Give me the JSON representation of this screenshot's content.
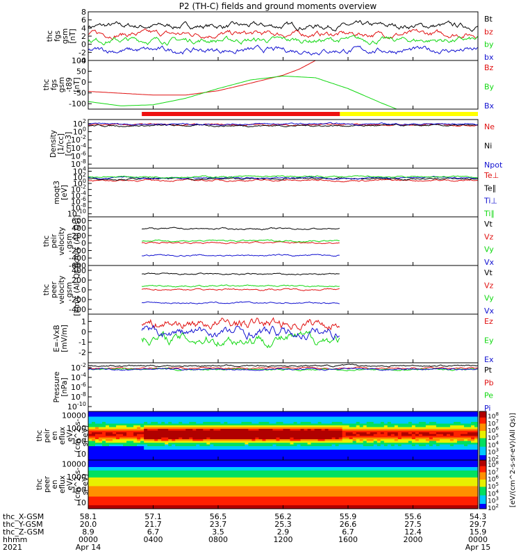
{
  "title": "P2 (TH-C) fields and ground moments overview",
  "colors": {
    "black": "#000000",
    "red": "#e01010",
    "green": "#10d810",
    "blue": "#1010d0",
    "bar_red": "#ee1111",
    "bar_yellow": "#ffff00"
  },
  "chart_data": [
    {
      "id": "fgs_gsm",
      "type": "line",
      "ylabel": [
        "thc",
        "fgs",
        "gsm",
        "[nT]"
      ],
      "yticks": [
        "8",
        "6",
        "4",
        "2",
        "0",
        "-2",
        "-4"
      ],
      "ylim": [
        -4,
        8
      ],
      "series": [
        {
          "name": "Bt",
          "color": "black"
        },
        {
          "name": "bz",
          "color": "red"
        },
        {
          "name": "by",
          "color": "green"
        },
        {
          "name": "bx",
          "color": "blue"
        }
      ],
      "approx_levels": {
        "Bt": 4.5,
        "bz": 2.5,
        "by": 1.0,
        "bx": -1.5
      }
    },
    {
      "id": "fgs_gsm_t89",
      "type": "line",
      "ylabel": [
        "thc",
        "fgs",
        "gsm",
        "-t89",
        "[nT]"
      ],
      "yticks": [
        "100",
        "50",
        "0",
        "-50",
        "-100"
      ],
      "ylim": [
        -125,
        100
      ],
      "series": [
        {
          "name": "Bz",
          "color": "red",
          "points": [
            [
              0,
              -43
            ],
            [
              4,
              -60
            ],
            [
              6,
              -60
            ],
            [
              8,
              -40
            ],
            [
              10,
              -5
            ],
            [
              12,
              32
            ],
            [
              13,
              60
            ],
            [
              14,
              100
            ]
          ]
        },
        {
          "name": "By",
          "color": "green",
          "points": [
            [
              0,
              -90
            ],
            [
              2,
              -110
            ],
            [
              4,
              -105
            ],
            [
              6,
              -75
            ],
            [
              8,
              -30
            ],
            [
              10,
              10
            ],
            [
              12,
              28
            ],
            [
              14,
              20
            ],
            [
              16,
              -30
            ],
            [
              18,
              -95
            ],
            [
              19,
              -125
            ]
          ]
        },
        {
          "name": "Bx",
          "color": "blue",
          "points": []
        }
      ]
    },
    {
      "id": "density",
      "type": "line",
      "ylabel": [
        "Density",
        "[1/cc]",
        "[cm-3]"
      ],
      "yticks": [
        "10^2",
        "10^0",
        "10^-2",
        "10^-4",
        "10^-6",
        "10^-8"
      ],
      "ylim_log10": [
        -9,
        3
      ],
      "series": [
        {
          "name": "Ne",
          "color": "red"
        },
        {
          "name": "Ni",
          "color": "black"
        },
        {
          "name": "Npot",
          "color": "blue"
        }
      ]
    },
    {
      "id": "temperature",
      "type": "line",
      "ylabel": [
        "moqt3",
        "[eV]"
      ],
      "yticks": [
        "10^4",
        "10^2",
        "10^0",
        "10^-2",
        "10^-4",
        "10^-6",
        "10^-8",
        "10^-10"
      ],
      "ylim_log10": [
        -11,
        5
      ],
      "series": [
        {
          "name": "Te⊥",
          "color": "red"
        },
        {
          "name": "Te∥",
          "color": "black"
        },
        {
          "name": "Ti⊥",
          "color": "blue"
        },
        {
          "name": "Ti∥",
          "color": "green"
        }
      ]
    },
    {
      "id": "peir_velocity",
      "type": "line",
      "ylabel": [
        "thc",
        "peir",
        "velocity",
        "gsm",
        "[km/s (All Qs)]"
      ],
      "yticks": [
        "600",
        "400",
        "200",
        "0",
        "-200",
        "-400",
        "-600"
      ],
      "ylim": [
        -600,
        700
      ],
      "x_range": [
        3.3,
        15.5
      ],
      "series": [
        {
          "name": "Vt",
          "color": "black",
          "level": 380
        },
        {
          "name": "Vz",
          "color": "red",
          "level": 10
        },
        {
          "name": "Vy",
          "color": "green",
          "level": 60
        },
        {
          "name": "Vx",
          "color": "blue",
          "level": -330
        }
      ]
    },
    {
      "id": "peer_velocity",
      "type": "line",
      "ylabel": [
        "thc",
        "peer",
        "velocity",
        "gsm",
        "[km/s (All Qs)]"
      ],
      "yticks": [
        "400",
        "200",
        "0",
        "-200",
        "-400"
      ],
      "ylim": [
        -500,
        500
      ],
      "x_range": [
        3.3,
        15.5
      ],
      "series": [
        {
          "name": "Vt",
          "color": "black",
          "level": 320
        },
        {
          "name": "Vz",
          "color": "red",
          "level": 10
        },
        {
          "name": "Vy",
          "color": "green",
          "level": 80
        },
        {
          "name": "Vx",
          "color": "blue",
          "level": -270
        }
      ]
    },
    {
      "id": "efield",
      "type": "line",
      "ylabel": [
        "E=-VxB",
        "[mV/m]"
      ],
      "yticks": [
        "1",
        "0",
        "-1",
        "-2"
      ],
      "ylim": [
        -3,
        1.7
      ],
      "x_range": [
        3.3,
        15.5
      ],
      "series": [
        {
          "name": "Ez",
          "color": "red",
          "level": 0.8
        },
        {
          "name": "Ey",
          "color": "green",
          "level": -0.7
        },
        {
          "name": "Ex",
          "color": "blue",
          "level": -0.1
        }
      ]
    },
    {
      "id": "pressure",
      "type": "line",
      "ylabel": [
        "Pressure",
        "[nPa]"
      ],
      "yticks": [
        "10^-2",
        "10^-4",
        "10^-6",
        "10^-8",
        "10^-10"
      ],
      "ylim_log10": [
        -11,
        -1
      ],
      "series": [
        {
          "name": "Pt",
          "color": "black"
        },
        {
          "name": "Pb",
          "color": "red"
        },
        {
          "name": "Pe",
          "color": "green"
        },
        {
          "name": "Pi",
          "color": "blue"
        }
      ]
    },
    {
      "id": "peir_spectrogram",
      "type": "heatmap",
      "ylabel": [
        "thc",
        "peir",
        "en",
        "eflux",
        "eV/",
        "(cm^2-s-",
        "sr-eV)"
      ],
      "yticks": [
        "10000",
        "1000",
        "100",
        "10"
      ],
      "ylim_log10": [
        0.5,
        4.3
      ]
    },
    {
      "id": "peer_spectrogram",
      "type": "heatmap",
      "ylabel": [
        "thc",
        "peer",
        "en",
        "eflux",
        "eV/",
        "(cm^2-s-",
        "sr-eV)"
      ],
      "yticks": [
        "10000",
        "1000",
        "100",
        "10"
      ],
      "ylim_log10": [
        0.5,
        4.3
      ]
    }
  ],
  "colorbar": {
    "label": "[eV/(cm^2-s-sr-eV)(All Qs)]",
    "ticks_top": [
      "10^8",
      "10^7",
      "10^6",
      "10^5",
      "10^4",
      "10^3",
      "10^2"
    ],
    "ticks_bottom": [
      "10^8",
      "10^7",
      "10^6",
      "10^5",
      "10^4",
      "10^3",
      "10^2"
    ]
  },
  "x_axis": {
    "range_hours": [
      0,
      24
    ],
    "row_labels": [
      "thc_X-GSM",
      "thc_Y-GSM",
      "thc_Z-GSM",
      "hhmm",
      "2021"
    ],
    "columns": [
      {
        "hours": 0,
        "values": [
          "58.1",
          "20.0",
          "8.9",
          "0000",
          "Apr 14"
        ]
      },
      {
        "hours": 4,
        "values": [
          "57.1",
          "21.7",
          "6.7",
          "0400",
          ""
        ]
      },
      {
        "hours": 8,
        "values": [
          "56.5",
          "23.7",
          "3.5",
          "0800",
          ""
        ]
      },
      {
        "hours": 12,
        "values": [
          "56.2",
          "25.3",
          "2.9",
          "1200",
          ""
        ]
      },
      {
        "hours": 16,
        "values": [
          "55.9",
          "26.6",
          "6.7",
          "1600",
          ""
        ]
      },
      {
        "hours": 20,
        "values": [
          "55.6",
          "27.5",
          "12.4",
          "2000",
          ""
        ]
      },
      {
        "hours": 24,
        "values": [
          "54.3",
          "29.7",
          "15.9",
          "0000",
          "Apr 15"
        ]
      }
    ]
  },
  "mode_bar": {
    "red_hours": [
      3.3,
      15.5
    ],
    "yellow_hours": [
      15.5,
      24
    ]
  }
}
